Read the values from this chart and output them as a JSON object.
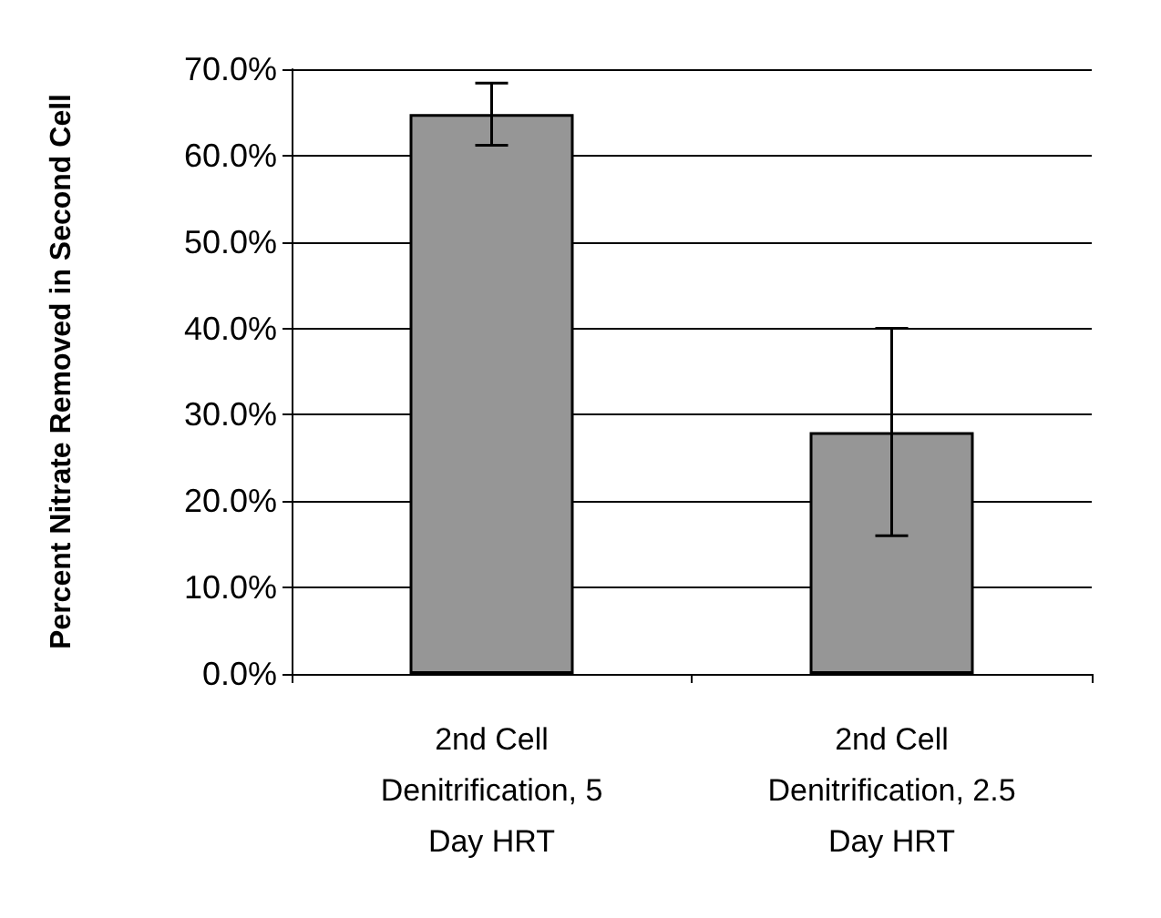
{
  "chart_data": {
    "type": "bar",
    "ylabel": "Percent Nitrate Removed in Second Cell",
    "categories": [
      "2nd Cell Denitrification, 5 Day HRT",
      "2nd Cell Denitrification, 2.5 Day HRT"
    ],
    "values": [
      64.8,
      28.0
    ],
    "errors": [
      3.6,
      12.0
    ],
    "color": "#969696",
    "ylim": [
      0,
      70
    ],
    "yticks": [
      {
        "value": 0,
        "label": "0.0%"
      },
      {
        "value": 10,
        "label": "10.0%"
      },
      {
        "value": 20,
        "label": "20.0%"
      },
      {
        "value": 30,
        "label": "30.0%"
      },
      {
        "value": 40,
        "label": "40.0%"
      },
      {
        "value": 50,
        "label": "50.0%"
      },
      {
        "value": 60,
        "label": "60.0%"
      },
      {
        "value": 70,
        "label": "70.0%"
      }
    ],
    "grid": "y"
  }
}
